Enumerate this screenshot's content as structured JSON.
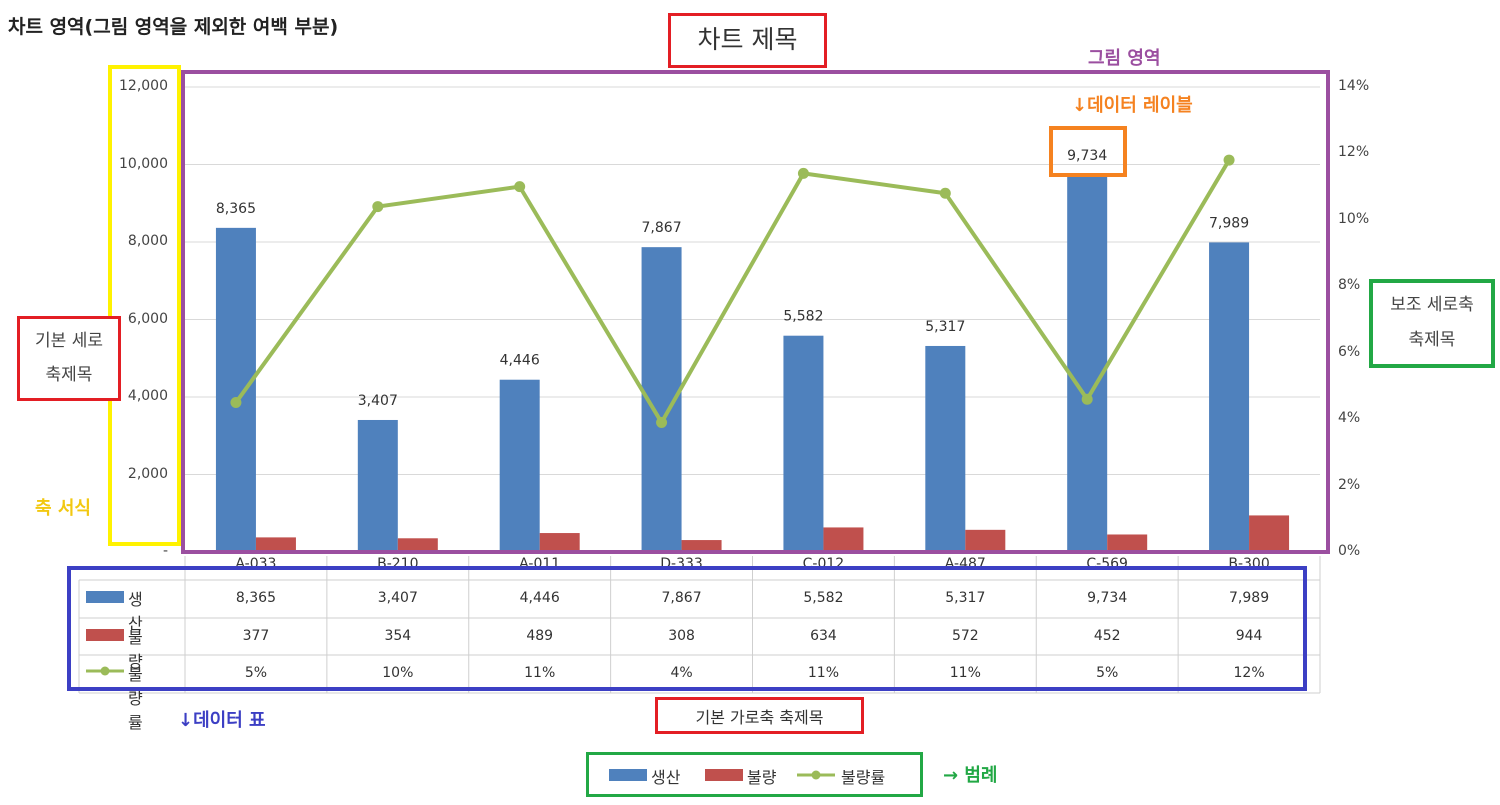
{
  "annotations": {
    "chart_area": "차트 영역(그림 영역을 제외한 여백 부분)",
    "chart_title": "차트 제목",
    "plot_area": "그림 영역",
    "data_label": "↓데이터 레이블",
    "primary_vaxis_title_line1": "기본 세로",
    "primary_vaxis_title_line2": "축제목",
    "axis_format": "축 서식",
    "secondary_vaxis_title_line1": "보조 세로축",
    "secondary_vaxis_title_line2": "축제목",
    "data_table": "↓데이터 표",
    "primary_haxis_title": "기본 가로축 축제목",
    "legend": "→ 범례"
  },
  "colors": {
    "production": "#4F81BD",
    "defect": "#C0504D",
    "defect_rate": "#9BBB59",
    "ann_red": "#E31E24",
    "ann_purple": "#9B4FA0",
    "ann_yellow": "#FFF200",
    "ann_orange": "#F58220",
    "ann_green": "#22A845",
    "ann_blue": "#3C3FC4"
  },
  "chart_data": {
    "type": "bar",
    "categories": [
      "A-033",
      "B-210",
      "A-011",
      "D-333",
      "C-012",
      "A-487",
      "C-569",
      "B-300"
    ],
    "series": [
      {
        "name": "생산",
        "type": "bar",
        "axis": "primary",
        "values": [
          8365,
          3407,
          4446,
          7867,
          5582,
          5317,
          9734,
          7989
        ],
        "labels": [
          "8,365",
          "3,407",
          "4,446",
          "7,867",
          "5,582",
          "5,317",
          "9,734",
          "7,989"
        ]
      },
      {
        "name": "불량",
        "type": "bar",
        "axis": "primary",
        "values": [
          377,
          354,
          489,
          308,
          634,
          572,
          452,
          944
        ],
        "labels": [
          "377",
          "354",
          "489",
          "308",
          "634",
          "572",
          "452",
          "944"
        ]
      },
      {
        "name": "불량률",
        "type": "line",
        "axis": "secondary",
        "values": [
          4.5,
          10.4,
          11.0,
          3.9,
          11.4,
          10.8,
          4.6,
          11.8
        ],
        "labels": [
          "5%",
          "10%",
          "11%",
          "4%",
          "11%",
          "11%",
          "5%",
          "12%"
        ]
      }
    ],
    "primary_ylim": [
      0,
      12000
    ],
    "primary_ticks": [
      "-",
      "2,000",
      "4,000",
      "6,000",
      "8,000",
      "10,000",
      "12,000"
    ],
    "secondary_ylim": [
      0,
      14
    ],
    "secondary_ticks": [
      "0%",
      "2%",
      "4%",
      "6%",
      "8%",
      "10%",
      "12%",
      "14%"
    ],
    "grid": true,
    "legend_position": "bottom",
    "data_table": true
  }
}
